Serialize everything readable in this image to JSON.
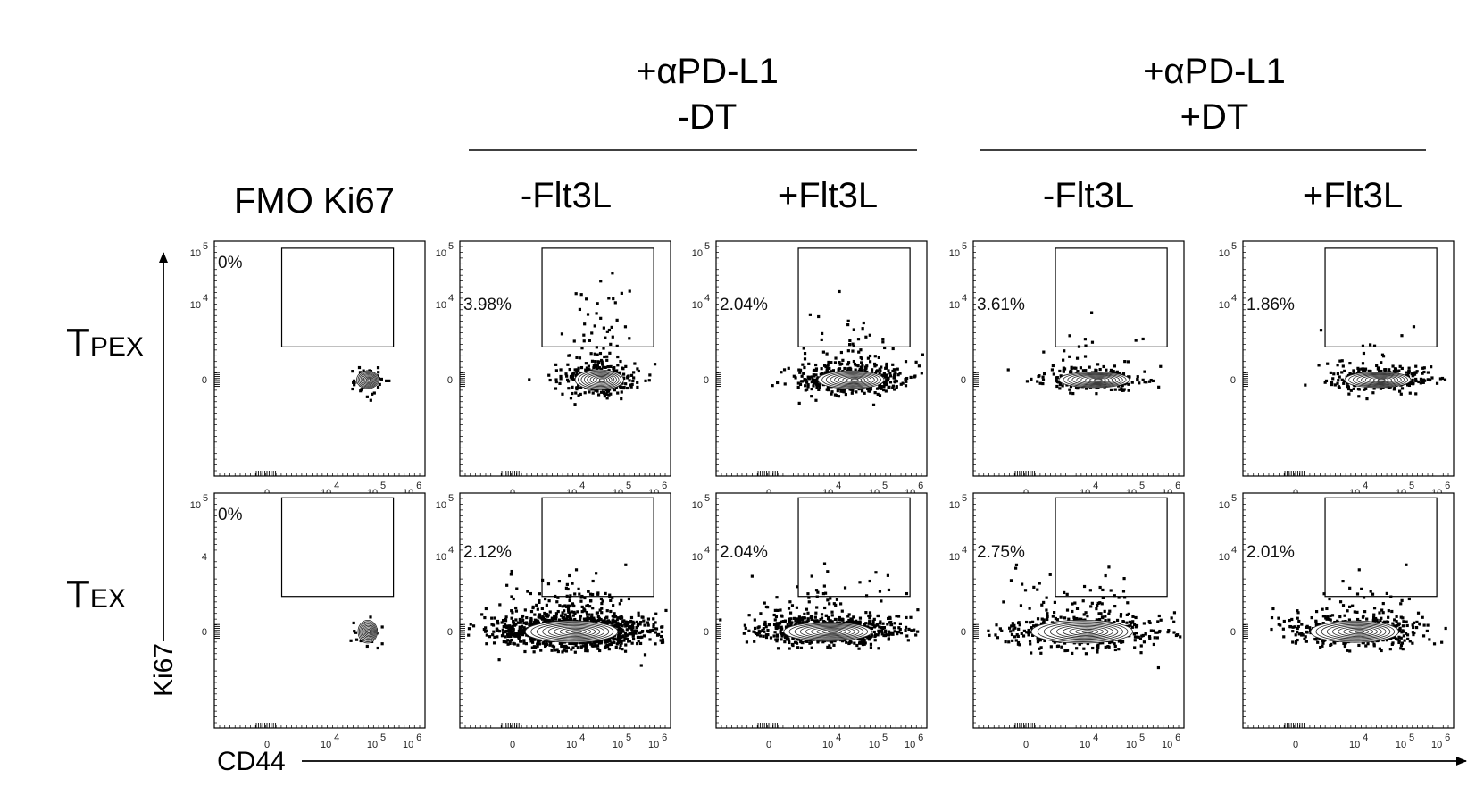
{
  "chart_data": {
    "type": "scatter",
    "plot_style": "flow-cytometry contour with outliers",
    "group_headers": [
      {
        "line1": "+αPD-L1",
        "line2": "-DT",
        "spans_columns": [
          1,
          2
        ]
      },
      {
        "line1": "+αPD-L1",
        "line2": "+DT",
        "spans_columns": [
          3,
          4
        ]
      }
    ],
    "columns": [
      "FMO Ki67",
      "-Flt3L",
      "+Flt3L",
      "-Flt3L",
      "+Flt3L"
    ],
    "rows": [
      {
        "label_main": "T",
        "label_sub": "PEX"
      },
      {
        "label_main": "T",
        "label_sub": "EX"
      }
    ],
    "xlabel": "CD44",
    "ylabel": "Ki67",
    "x_tick_labels": [
      "0",
      "10",
      "10",
      "10"
    ],
    "x_tick_exponents": [
      "",
      "4",
      "5",
      "6"
    ],
    "y_tick_labels": [
      "0",
      "10",
      "10"
    ],
    "y_tick_exponents": [
      "",
      "4",
      "5"
    ],
    "tex_fmo_y_tick_labels": [
      "0",
      "4",
      "10"
    ],
    "tex_fmo_y_tick_exponents": [
      "",
      "",
      "5"
    ],
    "gate_percentages": [
      [
        "0%",
        "3.98%",
        "2.04%",
        "3.61%",
        "1.86%"
      ],
      [
        "0%",
        "2.12%",
        "2.04%",
        "2.75%",
        "2.01%"
      ]
    ],
    "gate_percent_values": [
      [
        0,
        3.98,
        2.04,
        3.61,
        1.86
      ],
      [
        0,
        2.12,
        2.04,
        2.75,
        2.01
      ]
    ],
    "populations": [
      [
        {
          "cd44_center": 4.9,
          "ki67_center": 0.0,
          "spread_x": 0.25,
          "spread_y": 0.25,
          "outliers": 70,
          "scatter_up": 0.0
        },
        {
          "cd44_center": 4.6,
          "ki67_center": 0.0,
          "spread_x": 0.55,
          "spread_y": 0.28,
          "outliers": 380,
          "scatter_up": 0.8
        },
        {
          "cd44_center": 4.5,
          "ki67_center": 0.0,
          "spread_x": 0.75,
          "spread_y": 0.25,
          "outliers": 560,
          "scatter_up": 0.55
        },
        {
          "cd44_center": 4.2,
          "ki67_center": 0.0,
          "spread_x": 0.8,
          "spread_y": 0.22,
          "outliers": 230,
          "scatter_up": 0.5
        },
        {
          "cd44_center": 4.5,
          "ki67_center": 0.0,
          "spread_x": 0.75,
          "spread_y": 0.22,
          "outliers": 320,
          "scatter_up": 0.45
        }
      ],
      [
        {
          "cd44_center": 4.9,
          "ki67_center": 0.0,
          "spread_x": 0.22,
          "spread_y": 0.32,
          "outliers": 30,
          "scatter_up": 0.0
        },
        {
          "cd44_center": 4.0,
          "ki67_center": 0.0,
          "spread_x": 1.05,
          "spread_y": 0.3,
          "outliers": 1400,
          "scatter_up": 0.45
        },
        {
          "cd44_center": 4.0,
          "ki67_center": 0.0,
          "spread_x": 1.0,
          "spread_y": 0.26,
          "outliers": 760,
          "scatter_up": 0.5
        },
        {
          "cd44_center": 3.8,
          "ki67_center": 0.0,
          "spread_x": 1.15,
          "spread_y": 0.32,
          "outliers": 520,
          "scatter_up": 0.5
        },
        {
          "cd44_center": 4.0,
          "ki67_center": 0.0,
          "spread_x": 1.0,
          "spread_y": 0.3,
          "outliers": 460,
          "scatter_up": 0.45
        }
      ]
    ]
  }
}
